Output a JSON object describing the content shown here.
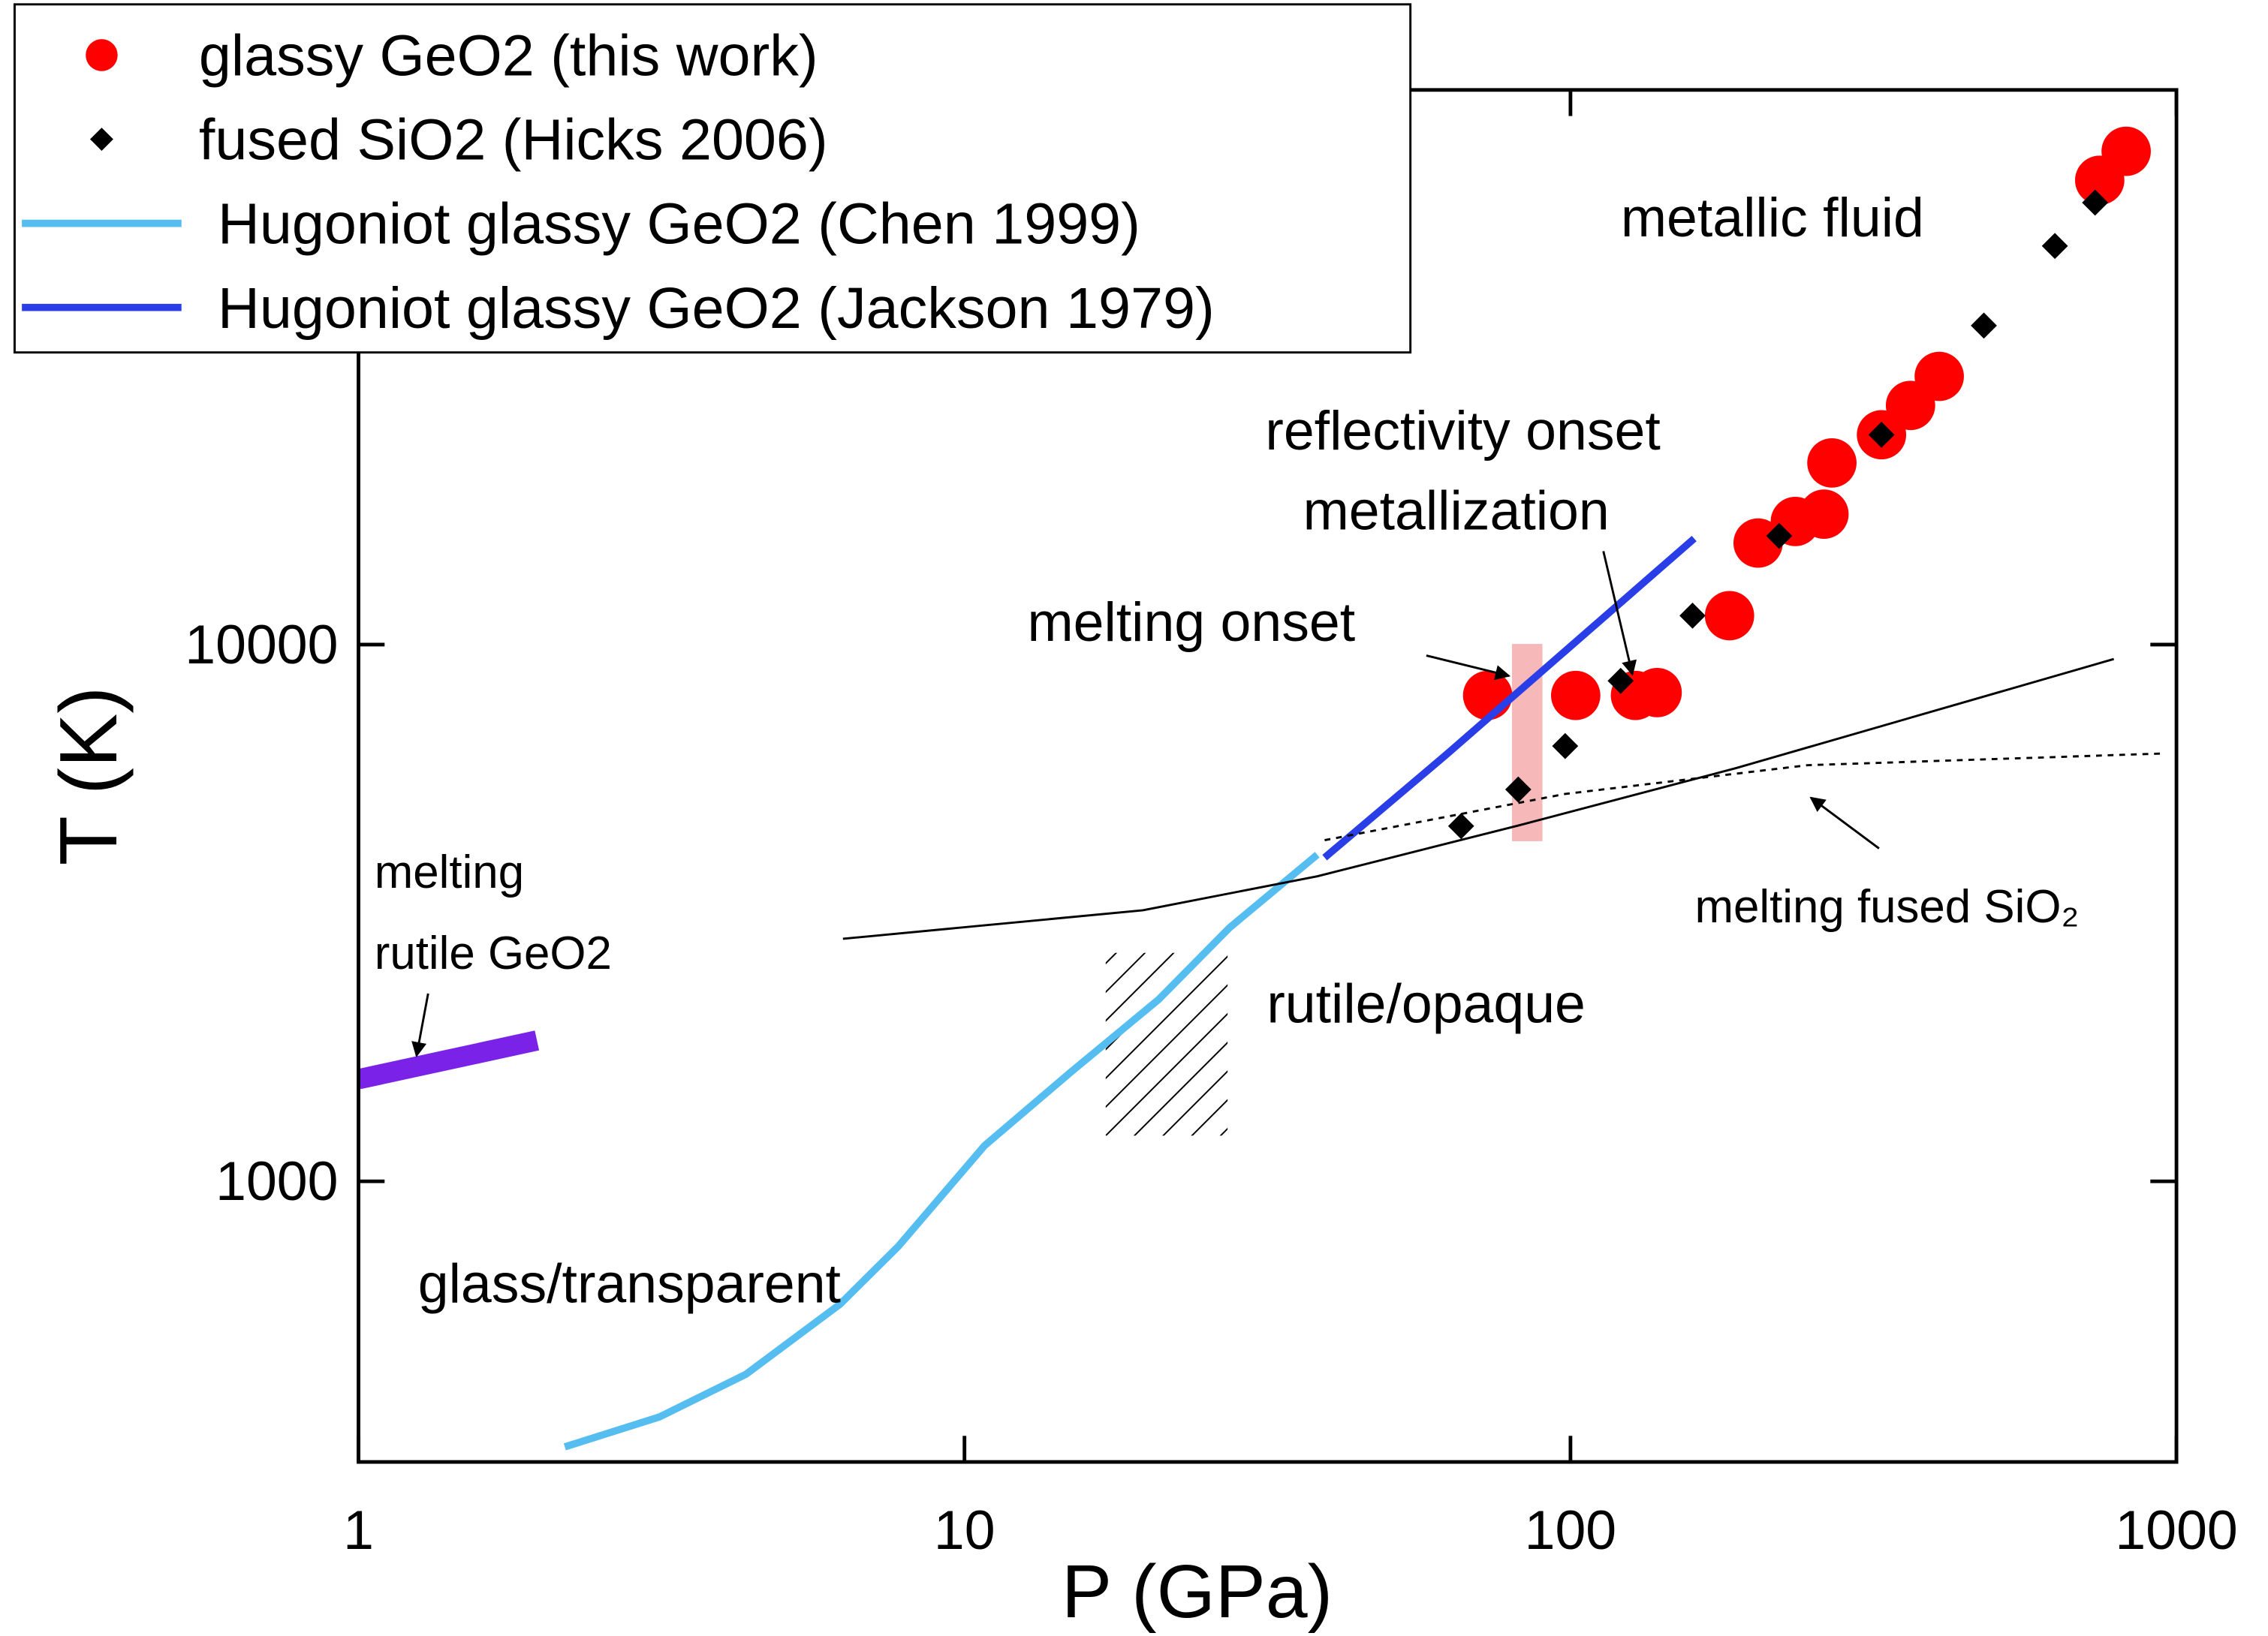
{
  "chart_data": {
    "type": "scatter",
    "xlabel": "P (GPa)",
    "ylabel": "T (K)",
    "xscale": "log",
    "yscale": "log",
    "xlim": [
      1,
      1000
    ],
    "ylim": [
      300,
      108000
    ],
    "xticks": [
      1,
      10,
      100,
      1000
    ],
    "yticks": [
      1000,
      10000
    ],
    "legend": "upper left",
    "annotations": [
      "metallic fluid",
      "reflectivity onset",
      "metallization",
      "melting onset",
      "melting",
      "rutile GeO2",
      "melting fused SiO₂",
      "rutile/opaque",
      "glass/transparent"
    ],
    "series": [
      {
        "name": "glassy GeO2 (this work)",
        "color": "#ff0000",
        "mode": "markers",
        "marker": "circle",
        "x": [
          73,
          102,
          128,
          139,
          183,
          204,
          235,
          262,
          270,
          326,
          364,
          406,
          747,
          826
        ],
        "values": [
          8040,
          8040,
          8040,
          8140,
          11320,
          15460,
          16960,
          17500,
          21800,
          24600,
          27900,
          31600,
          73300,
          83000
        ]
      },
      {
        "name": "fused SiO2 (Hicks 2006)",
        "color": "#000000",
        "mode": "markers",
        "marker": "diamond",
        "x": [
          66,
          82,
          98,
          121,
          159,
          221,
          326,
          481,
          630,
          734
        ],
        "values": [
          4590,
          5370,
          6470,
          8560,
          11320,
          15940,
          24600,
          39300,
          55300,
          66600
        ]
      },
      {
        "name": "Hugoniot glassy GeO2 (Chen 1999)",
        "color": "#55bdf0",
        "mode": "line",
        "width": 5,
        "x": [
          2.19,
          3.14,
          4.36,
          6.23,
          7.77,
          10.8,
          15.0,
          20.9,
          27.4,
          38.2
        ],
        "values": [
          320,
          364,
          437,
          590,
          756,
          1166,
          1600,
          2180,
          2970,
          4060
        ]
      },
      {
        "name": "Hugoniot glassy GeO2 (Jackson 1979)",
        "color": "#2a3ee8",
        "mode": "line",
        "width": 5,
        "x": [
          39.3,
          62.7,
          160
        ],
        "values": [
          4010,
          6270,
          15760
        ]
      },
      {
        "color": "#7b22e8",
        "mode": "line",
        "width": 14,
        "x": [
          1,
          1.97
        ],
        "values": [
          1550,
          1830
        ]
      },
      {
        "color": "#000000",
        "mode": "line",
        "width": 1.5,
        "x": [
          6.3,
          19.7,
          38.2,
          82,
          188,
          788
        ],
        "values": [
          2830,
          3200,
          3700,
          4600,
          5890,
          9400
        ]
      },
      {
        "color": "#000000",
        "mode": "line",
        "width": 1.5,
        "dash": true,
        "x": [
          39.3,
          98,
          246,
          955
        ],
        "values": [
          4320,
          5270,
          5960,
          6270
        ]
      }
    ]
  }
}
